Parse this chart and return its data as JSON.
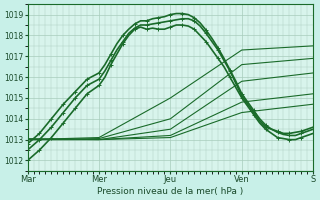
{
  "background_color": "#c8f0e8",
  "plot_bg_color": "#d8f4ec",
  "grid_color": "#a8ccbc",
  "line_color": "#1a6b2a",
  "x_tick_labels": [
    "Mar",
    "Mer",
    "Jeu",
    "Ven",
    "S"
  ],
  "ylim": [
    1011.8,
    1019.5
  ],
  "yticks": [
    1012,
    1013,
    1014,
    1015,
    1016,
    1017,
    1018,
    1019
  ],
  "xlabel": "Pression niveau de la mer( hPa )",
  "n_points": 193,
  "day_positions": [
    0,
    48,
    96,
    144,
    192
  ],
  "series_with_markers": [
    {
      "points": [
        [
          0,
          1012.0
        ],
        [
          8,
          1012.5
        ],
        [
          16,
          1013.1
        ],
        [
          24,
          1013.8
        ],
        [
          32,
          1014.5
        ],
        [
          40,
          1015.2
        ],
        [
          48,
          1015.6
        ],
        [
          52,
          1016.0
        ],
        [
          56,
          1016.6
        ],
        [
          60,
          1017.1
        ],
        [
          64,
          1017.6
        ],
        [
          68,
          1018.0
        ],
        [
          72,
          1018.3
        ],
        [
          76,
          1018.4
        ],
        [
          80,
          1018.3
        ],
        [
          84,
          1018.35
        ],
        [
          88,
          1018.3
        ],
        [
          92,
          1018.3
        ],
        [
          96,
          1018.4
        ],
        [
          100,
          1018.5
        ],
        [
          104,
          1018.5
        ],
        [
          108,
          1018.45
        ],
        [
          112,
          1018.3
        ],
        [
          116,
          1018.0
        ],
        [
          120,
          1017.7
        ],
        [
          124,
          1017.3
        ],
        [
          128,
          1016.9
        ],
        [
          132,
          1016.5
        ],
        [
          136,
          1016.0
        ],
        [
          140,
          1015.5
        ],
        [
          144,
          1015.0
        ],
        [
          148,
          1014.6
        ],
        [
          152,
          1014.2
        ],
        [
          156,
          1013.8
        ],
        [
          160,
          1013.5
        ],
        [
          164,
          1013.3
        ],
        [
          168,
          1013.1
        ],
        [
          172,
          1013.05
        ],
        [
          176,
          1013.0
        ],
        [
          180,
          1013.0
        ],
        [
          184,
          1013.1
        ],
        [
          188,
          1013.2
        ],
        [
          192,
          1013.3
        ]
      ],
      "lw": 1.2
    },
    {
      "points": [
        [
          0,
          1012.5
        ],
        [
          8,
          1013.0
        ],
        [
          16,
          1013.6
        ],
        [
          24,
          1014.3
        ],
        [
          32,
          1015.0
        ],
        [
          40,
          1015.6
        ],
        [
          48,
          1015.9
        ],
        [
          52,
          1016.3
        ],
        [
          56,
          1016.8
        ],
        [
          60,
          1017.3
        ],
        [
          64,
          1017.7
        ],
        [
          68,
          1018.1
        ],
        [
          72,
          1018.35
        ],
        [
          76,
          1018.5
        ],
        [
          80,
          1018.5
        ],
        [
          84,
          1018.55
        ],
        [
          88,
          1018.6
        ],
        [
          92,
          1018.65
        ],
        [
          96,
          1018.7
        ],
        [
          100,
          1018.75
        ],
        [
          104,
          1018.8
        ],
        [
          108,
          1018.8
        ],
        [
          112,
          1018.7
        ],
        [
          116,
          1018.45
        ],
        [
          120,
          1018.1
        ],
        [
          124,
          1017.7
        ],
        [
          128,
          1017.3
        ],
        [
          132,
          1016.8
        ],
        [
          136,
          1016.3
        ],
        [
          140,
          1015.7
        ],
        [
          144,
          1015.1
        ],
        [
          148,
          1014.7
        ],
        [
          152,
          1014.3
        ],
        [
          156,
          1013.9
        ],
        [
          160,
          1013.6
        ],
        [
          164,
          1013.5
        ],
        [
          168,
          1013.4
        ],
        [
          172,
          1013.3
        ],
        [
          176,
          1013.3
        ],
        [
          180,
          1013.35
        ],
        [
          184,
          1013.4
        ],
        [
          188,
          1013.5
        ],
        [
          192,
          1013.6
        ]
      ],
      "lw": 1.2
    },
    {
      "points": [
        [
          0,
          1012.8
        ],
        [
          8,
          1013.3
        ],
        [
          16,
          1014.0
        ],
        [
          24,
          1014.7
        ],
        [
          32,
          1015.3
        ],
        [
          40,
          1015.9
        ],
        [
          48,
          1016.2
        ],
        [
          52,
          1016.6
        ],
        [
          56,
          1017.1
        ],
        [
          60,
          1017.6
        ],
        [
          64,
          1018.0
        ],
        [
          68,
          1018.3
        ],
        [
          72,
          1018.55
        ],
        [
          76,
          1018.7
        ],
        [
          80,
          1018.7
        ],
        [
          84,
          1018.8
        ],
        [
          88,
          1018.85
        ],
        [
          92,
          1018.9
        ],
        [
          96,
          1019.0
        ],
        [
          100,
          1019.05
        ],
        [
          104,
          1019.05
        ],
        [
          108,
          1019.0
        ],
        [
          112,
          1018.85
        ],
        [
          116,
          1018.6
        ],
        [
          120,
          1018.25
        ],
        [
          124,
          1017.85
        ],
        [
          128,
          1017.4
        ],
        [
          132,
          1016.9
        ],
        [
          136,
          1016.35
        ],
        [
          140,
          1015.8
        ],
        [
          144,
          1015.2
        ],
        [
          148,
          1014.8
        ],
        [
          152,
          1014.4
        ],
        [
          156,
          1014.0
        ],
        [
          160,
          1013.7
        ],
        [
          164,
          1013.5
        ],
        [
          168,
          1013.35
        ],
        [
          172,
          1013.25
        ],
        [
          176,
          1013.2
        ],
        [
          180,
          1013.2
        ],
        [
          184,
          1013.3
        ],
        [
          188,
          1013.4
        ],
        [
          192,
          1013.5
        ]
      ],
      "lw": 1.2
    }
  ],
  "series_plain": [
    {
      "points": [
        [
          0,
          1013.0
        ],
        [
          48,
          1013.1
        ],
        [
          96,
          1015.0
        ],
        [
          144,
          1017.3
        ],
        [
          192,
          1017.5
        ]
      ],
      "lw": 0.8
    },
    {
      "points": [
        [
          0,
          1013.0
        ],
        [
          48,
          1013.05
        ],
        [
          96,
          1014.0
        ],
        [
          144,
          1016.6
        ],
        [
          192,
          1016.9
        ]
      ],
      "lw": 0.8
    },
    {
      "points": [
        [
          0,
          1013.05
        ],
        [
          48,
          1013.0
        ],
        [
          96,
          1013.5
        ],
        [
          144,
          1015.8
        ],
        [
          192,
          1016.2
        ]
      ],
      "lw": 0.8
    },
    {
      "points": [
        [
          0,
          1013.0
        ],
        [
          48,
          1013.0
        ],
        [
          96,
          1013.2
        ],
        [
          144,
          1014.8
        ],
        [
          192,
          1015.2
        ]
      ],
      "lw": 0.8
    },
    {
      "points": [
        [
          0,
          1013.0
        ],
        [
          48,
          1013.0
        ],
        [
          96,
          1013.1
        ],
        [
          144,
          1014.3
        ],
        [
          192,
          1014.7
        ]
      ],
      "lw": 0.8
    }
  ],
  "marker": "+",
  "marker_size": 2.5,
  "marker_every": 8,
  "marker_lw": 0.8
}
